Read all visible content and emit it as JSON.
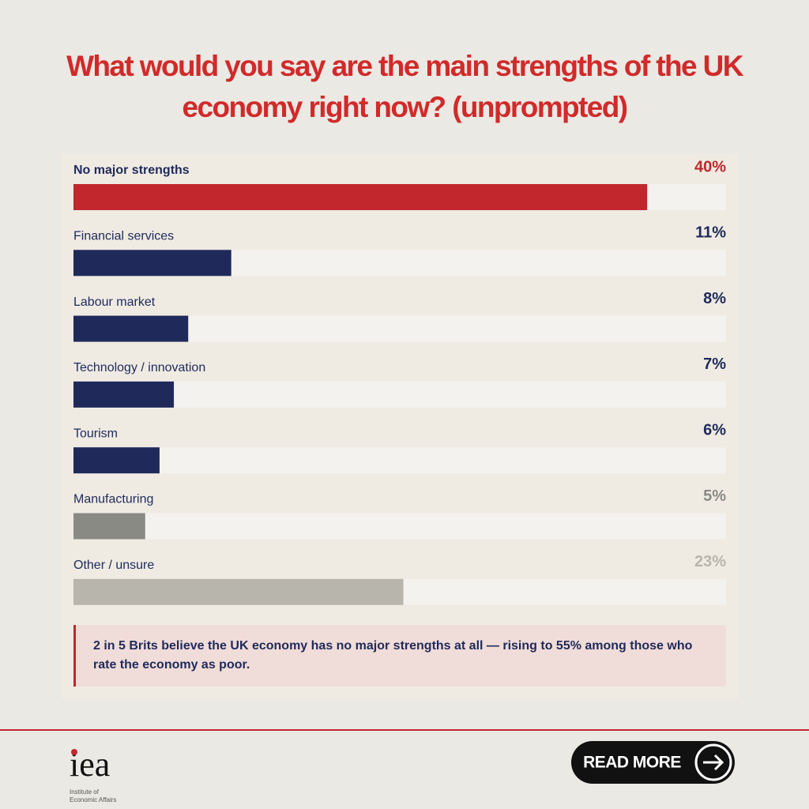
{
  "chart_data": {
    "type": "hbar",
    "title": "What would you say are the main strengths of the UK economy right now? (unprompted)",
    "categories": [
      "No major strengths",
      "Financial services",
      "Labour market",
      "Technology / innovation",
      "Tourism",
      "Manufacturing",
      "Other / unsure"
    ],
    "values": [
      40,
      11,
      8,
      7,
      6,
      5,
      23
    ],
    "value_labels": [
      "40%",
      "11%",
      "8%",
      "7%",
      "6%",
      "5%",
      "23%"
    ],
    "colors": [
      "#c1272d",
      "#1f2a5a",
      "#1f2a5a",
      "#1f2a5a",
      "#1f2a5a",
      "#8a8a85",
      "#b8b5ad"
    ],
    "xlim": [
      0,
      45.5
    ],
    "annotation": "2 in 5 Brits believe the UK economy has no major strengths at all — rising to 55% among those who rate the economy as poor."
  },
  "footer": {
    "logo": "iea",
    "org_lines": [
      "Institute of",
      "Economic Affairs"
    ],
    "button": "READ MORE"
  }
}
